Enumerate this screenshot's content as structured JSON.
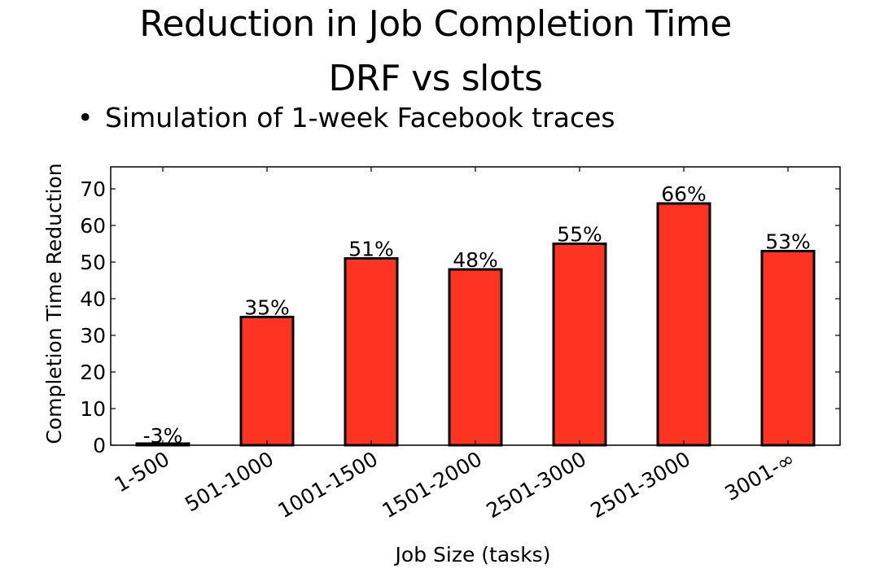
{
  "slide": {
    "title_line1": "Reduction in Job Completion Time",
    "title_line2": "DRF vs slots",
    "bullet_marker": "•",
    "bullet_text": "Simulation of 1-week Facebook traces"
  },
  "chart_data": {
    "type": "bar",
    "title": "",
    "xlabel": "Job Size (tasks)",
    "ylabel": "Completion Time Reduction",
    "ylim": [
      0,
      76
    ],
    "yticks": [
      0,
      10,
      20,
      30,
      40,
      50,
      60,
      70
    ],
    "categories": [
      "1-500",
      "501-1000",
      "1001-1500",
      "1501-2000",
      "2501-3000",
      "2501-3000",
      "3001-∞"
    ],
    "values": [
      -3,
      35,
      51,
      48,
      55,
      66,
      53
    ],
    "data_labels": [
      "-3%",
      "35%",
      "51%",
      "48%",
      "55%",
      "66%",
      "53%"
    ],
    "bar_color": "#ff3322",
    "edge_color": "#000000",
    "grid": false,
    "legend": "none"
  }
}
